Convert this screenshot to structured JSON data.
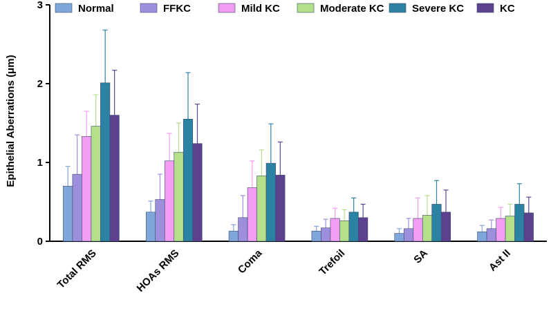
{
  "chart_data": {
    "type": "bar",
    "y_label": "Epithelial Aberrations (μm)",
    "categories": [
      "Total RMS",
      "HOAs RMS",
      "Coma",
      "Trefoil",
      "SA",
      "Ast II"
    ],
    "series": [
      {
        "name": "Normal",
        "color": "#7fa6da",
        "values": [
          0.7,
          0.37,
          0.13,
          0.13,
          0.1,
          0.12
        ],
        "errors": [
          0.25,
          0.14,
          0.08,
          0.06,
          0.06,
          0.08
        ]
      },
      {
        "name": "FFKC",
        "color": "#9d8fdb",
        "values": [
          0.85,
          0.53,
          0.3,
          0.17,
          0.16,
          0.16
        ],
        "errors": [
          0.5,
          0.32,
          0.28,
          0.11,
          0.13,
          0.11
        ]
      },
      {
        "name": "Mild KC",
        "color": "#f19df2",
        "values": [
          1.33,
          1.02,
          0.68,
          0.29,
          0.29,
          0.29
        ],
        "errors": [
          0.32,
          0.35,
          0.34,
          0.13,
          0.26,
          0.14
        ]
      },
      {
        "name": "Moderate KC",
        "color": "#b4e08b",
        "values": [
          1.46,
          1.13,
          0.83,
          0.26,
          0.33,
          0.32
        ],
        "errors": [
          0.4,
          0.37,
          0.33,
          0.14,
          0.25,
          0.15
        ]
      },
      {
        "name": "Severe KC",
        "color": "#2b82a3",
        "values": [
          2.01,
          1.55,
          0.99,
          0.37,
          0.47,
          0.47
        ],
        "errors": [
          0.67,
          0.59,
          0.5,
          0.18,
          0.3,
          0.26
        ]
      },
      {
        "name": "KC",
        "color": "#5d418f",
        "values": [
          1.6,
          1.24,
          0.84,
          0.3,
          0.37,
          0.36
        ],
        "errors": [
          0.57,
          0.5,
          0.42,
          0.17,
          0.28,
          0.2
        ]
      }
    ],
    "ylim": [
      0,
      3
    ],
    "yticks": [
      0,
      1,
      2,
      3
    ],
    "legend": "top"
  }
}
